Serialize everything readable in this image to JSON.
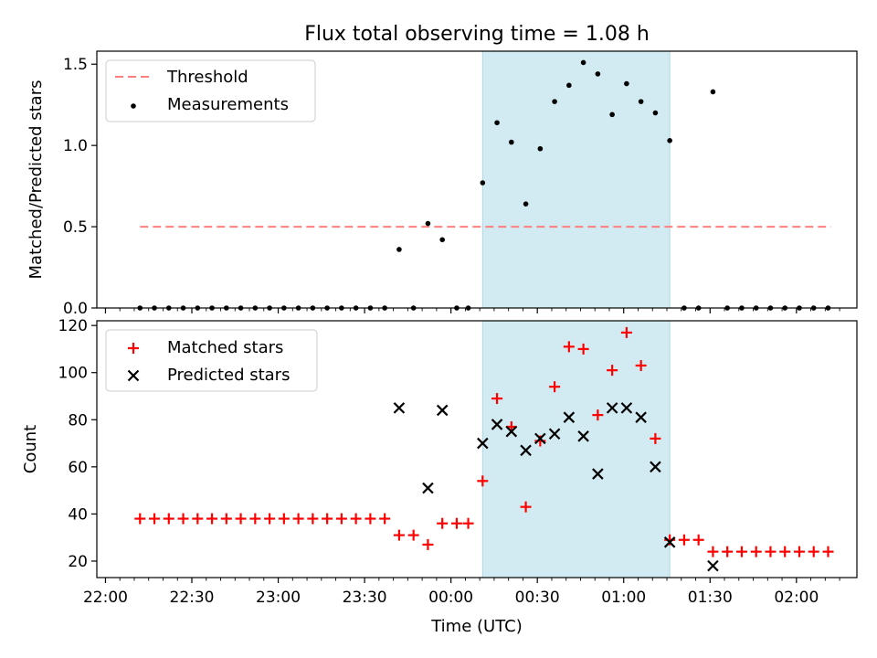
{
  "figure": {
    "title": "Flux total observing time = 1.08 h",
    "xlabel": "Time (UTC)",
    "x_ticks": [
      "22:00",
      "22:30",
      "23:00",
      "23:30",
      "00:00",
      "00:30",
      "01:00",
      "01:30",
      "02:00"
    ]
  },
  "colors": {
    "threshold": "#ff7f7f",
    "shade": "#add8e6",
    "matched": "#ff0000",
    "predicted": "#000000",
    "measurement": "#000000"
  },
  "chart_data": [
    {
      "type": "scatter",
      "ylabel": "Matched/Predicted stars",
      "ylim": [
        0,
        1.58
      ],
      "y_ticks": [
        "0.0",
        "0.5",
        "1.0",
        "1.5"
      ],
      "legend_position": "top-left",
      "legend": [
        {
          "label": "Threshold",
          "marker": "dashed-line"
        },
        {
          "label": "Measurements",
          "marker": "dot"
        }
      ],
      "threshold": {
        "value": 0.5,
        "x_start": "22:12",
        "x_end": "02:12"
      },
      "shaded_interval": [
        "00:11",
        "01:16"
      ],
      "measurements": {
        "x": [
          "22:12",
          "22:17",
          "22:22",
          "22:27",
          "22:32",
          "22:37",
          "22:42",
          "22:47",
          "22:52",
          "22:57",
          "23:02",
          "23:07",
          "23:12",
          "23:17",
          "23:22",
          "23:27",
          "23:32",
          "23:37",
          "23:42",
          "23:47",
          "23:52",
          "23:57",
          "00:02",
          "00:06",
          "00:11",
          "00:16",
          "00:21",
          "00:26",
          "00:31",
          "00:36",
          "00:41",
          "00:46",
          "00:51",
          "00:56",
          "01:01",
          "01:06",
          "01:11",
          "01:16",
          "01:21",
          "01:26",
          "01:31",
          "01:36",
          "01:41",
          "01:46",
          "01:51",
          "01:56",
          "02:01",
          "02:06",
          "02:11"
        ],
        "y": [
          0,
          0,
          0,
          0,
          0,
          0,
          0,
          0,
          0,
          0,
          0,
          0,
          0,
          0,
          0,
          0,
          0,
          0,
          0.36,
          0,
          0.52,
          0.42,
          0,
          0,
          0.77,
          1.14,
          1.02,
          0.64,
          0.98,
          1.27,
          1.37,
          1.51,
          1.44,
          1.19,
          1.38,
          1.27,
          1.2,
          1.03,
          0,
          0,
          1.33,
          0,
          0,
          0,
          0,
          0,
          0,
          0,
          0
        ]
      }
    },
    {
      "type": "scatter",
      "ylabel": "Count",
      "ylim": [
        13,
        122
      ],
      "y_ticks": [
        "20",
        "40",
        "60",
        "80",
        "100",
        "120"
      ],
      "legend_position": "top-left",
      "shaded_interval": [
        "00:11",
        "01:16"
      ],
      "series": [
        {
          "name": "Matched stars",
          "marker": "plus",
          "x": [
            "22:12",
            "22:17",
            "22:22",
            "22:27",
            "22:32",
            "22:37",
            "22:42",
            "22:47",
            "22:52",
            "22:57",
            "23:02",
            "23:07",
            "23:12",
            "23:17",
            "23:22",
            "23:27",
            "23:32",
            "23:37",
            "23:42",
            "23:47",
            "23:52",
            "23:57",
            "00:02",
            "00:06",
            "00:11",
            "00:16",
            "00:21",
            "00:26",
            "00:31",
            "00:36",
            "00:41",
            "00:46",
            "00:51",
            "00:56",
            "01:01",
            "01:06",
            "01:11",
            "01:16",
            "01:21",
            "01:26",
            "01:31",
            "01:36",
            "01:41",
            "01:46",
            "01:51",
            "01:56",
            "02:01",
            "02:06",
            "02:11"
          ],
          "y": [
            38,
            38,
            38,
            38,
            38,
            38,
            38,
            38,
            38,
            38,
            38,
            38,
            38,
            38,
            38,
            38,
            38,
            38,
            31,
            31,
            27,
            36,
            36,
            36,
            54,
            89,
            77,
            43,
            71,
            94,
            111,
            110,
            82,
            101,
            117,
            103,
            72,
            29,
            29,
            29,
            24,
            24,
            24,
            24,
            24,
            24,
            24,
            24,
            24
          ]
        },
        {
          "name": "Predicted stars",
          "marker": "x",
          "x": [
            "23:42",
            "23:52",
            "23:57",
            "00:11",
            "00:16",
            "00:21",
            "00:26",
            "00:31",
            "00:36",
            "00:41",
            "00:46",
            "00:51",
            "00:56",
            "01:01",
            "01:06",
            "01:11",
            "01:16",
            "01:31"
          ],
          "y": [
            85,
            51,
            84,
            70,
            78,
            75,
            67,
            72,
            74,
            81,
            73,
            57,
            85,
            85,
            81,
            60,
            28,
            18
          ]
        }
      ]
    }
  ]
}
